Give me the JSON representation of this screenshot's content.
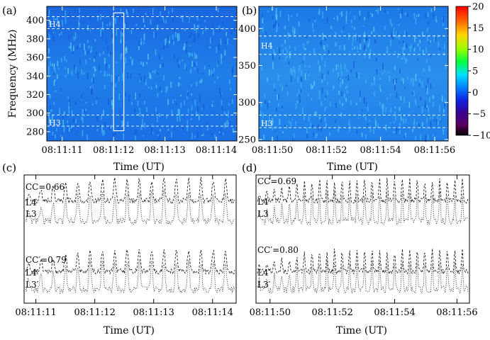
{
  "chart_data": [
    {
      "type": "heatmap",
      "panel_label": "(a)",
      "ylabel": "Frequency (MHz)",
      "ylim": [
        270,
        415
      ],
      "xlim": [
        "08:11:10.7",
        "08:11:14.4"
      ],
      "x_tick_labels": [
        "08:11:11",
        "08:11:12",
        "08:11:13",
        "08:11:14"
      ],
      "y_tick_labels": [
        "280",
        "300",
        "320",
        "340",
        "360",
        "380",
        "400"
      ],
      "y_ticks": [
        280,
        300,
        320,
        340,
        360,
        380,
        400
      ],
      "band_labels": [
        {
          "text": "H4",
          "freq": 396
        },
        {
          "text": "H3",
          "freq": 290
        }
      ],
      "band_lines_mhz": [
        404,
        391,
        298,
        286
      ],
      "highlight_box": {
        "t_start": "08:11:12.0",
        "t_end": "08:11:12.2",
        "freq_range": [
          281,
          408
        ]
      }
    },
    {
      "type": "heatmap",
      "panel_label": "(b)",
      "ylim": [
        248,
        430
      ],
      "xlim": [
        "08:11:49.5",
        "08:11:56.5"
      ],
      "x_tick_labels": [
        "08:11:50",
        "08:11:52",
        "08:11:54",
        "08:11:56"
      ],
      "y_tick_labels": [
        "250",
        "300",
        "350",
        "400"
      ],
      "y_ticks": [
        250,
        300,
        350,
        400
      ],
      "band_labels": [
        {
          "text": "H4",
          "freq": 377
        },
        {
          "text": "H3",
          "freq": 272
        }
      ],
      "band_lines_mhz": [
        390,
        365,
        283,
        266
      ],
      "colorbar": {
        "range": [
          -10,
          20
        ],
        "tick_labels": [
          "20",
          "15",
          "10",
          "5",
          "0",
          "−5",
          "−10"
        ],
        "tick_values": [
          20,
          15,
          10,
          5,
          0,
          -5,
          -10
        ]
      }
    },
    {
      "type": "line",
      "panel_label": "(c)",
      "xlabel": "Time (UT)",
      "x_tick_labels": [
        "08:11:11",
        "08:11:12",
        "08:11:13",
        "08:11:14"
      ],
      "groups": [
        {
          "cc_label": "CC=0.66",
          "series": [
            {
              "name": "L4"
            },
            {
              "name": "L3"
            }
          ]
        },
        {
          "cc_label": "CC′=0.79",
          "series": [
            {
              "name": "L4′"
            },
            {
              "name": "L3′"
            }
          ]
        }
      ]
    },
    {
      "type": "line",
      "panel_label": "(d)",
      "xlabel": "Time (UT)",
      "x_tick_labels": [
        "08:11:50",
        "08:11:52",
        "08:11:54",
        "08:11:56"
      ],
      "groups": [
        {
          "cc_label": "CC=0.69",
          "series": [
            {
              "name": "L4"
            },
            {
              "name": "L3"
            }
          ]
        },
        {
          "cc_label": "CC′=0.80",
          "series": [
            {
              "name": "L4′"
            },
            {
              "name": "L3′"
            }
          ]
        }
      ]
    }
  ],
  "shared": {
    "time_label_top": "Time (UT)"
  }
}
